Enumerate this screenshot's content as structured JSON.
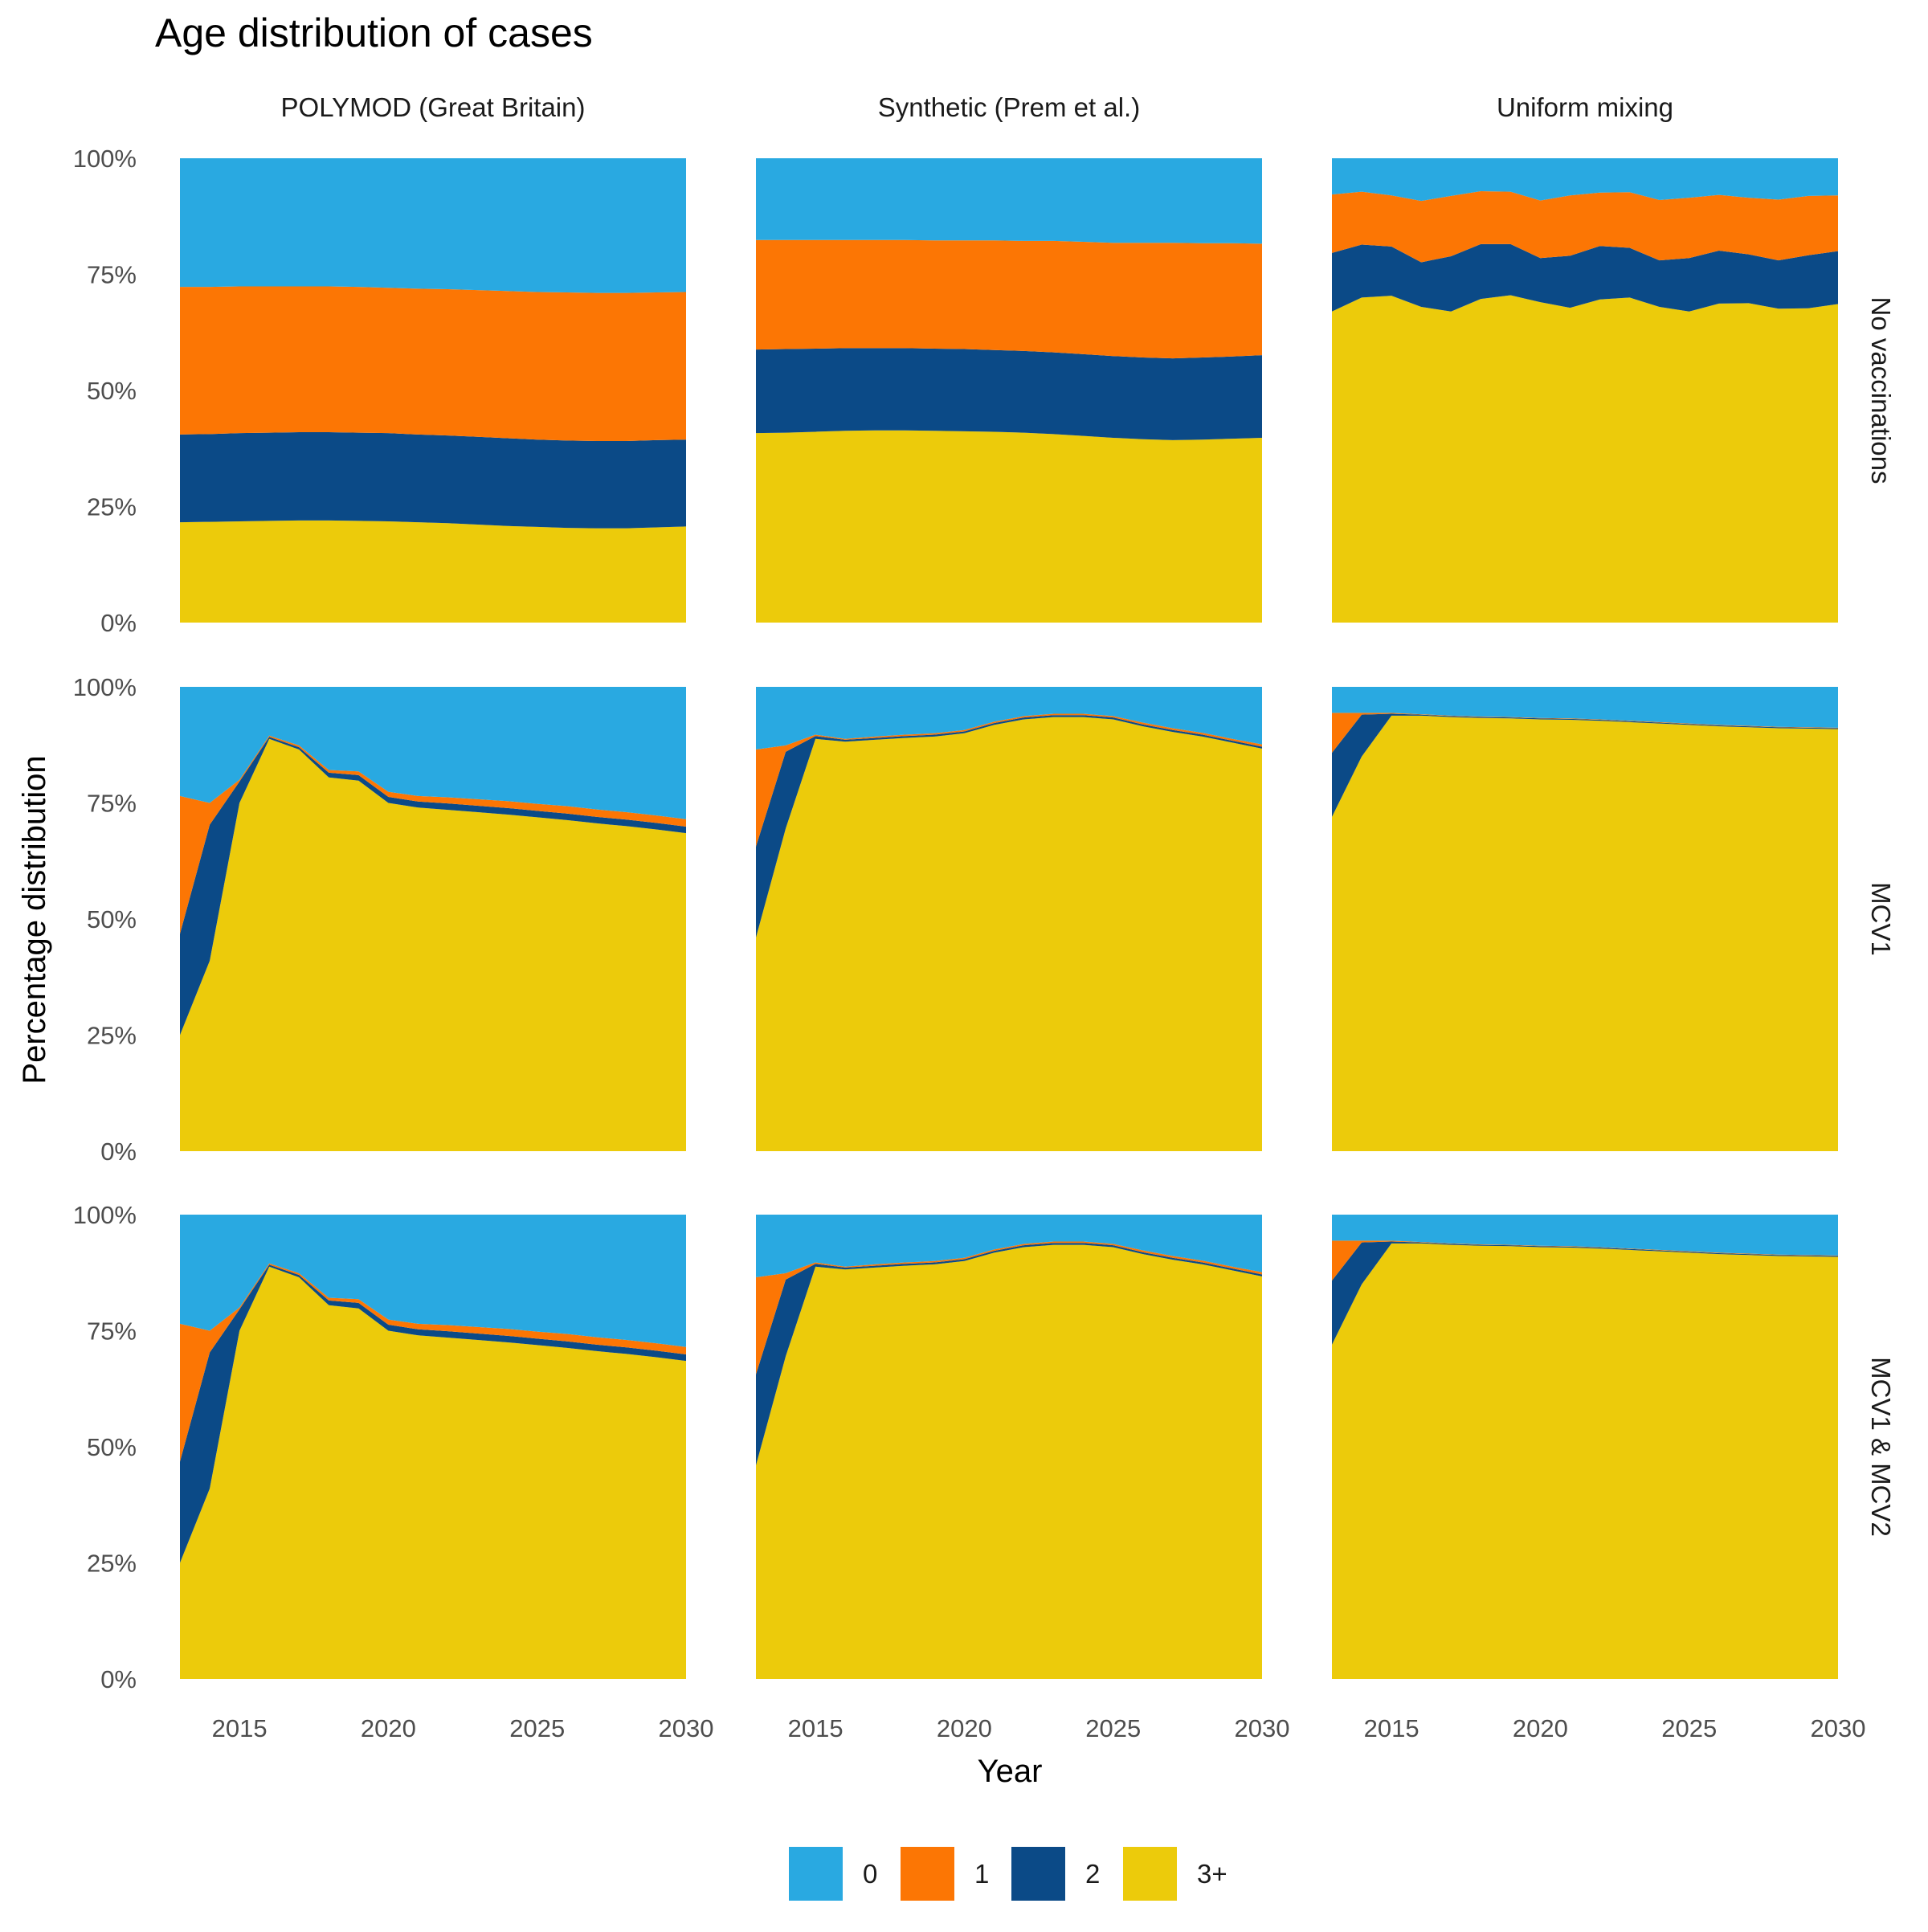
{
  "figure": {
    "title": "Age distribution of cases",
    "ylabel": "Percentage distribution",
    "xlabel": "Year"
  },
  "colors": {
    "0": "#29a9e1",
    "1": "#fc7604",
    "2": "#0b4a87",
    "3+": "#eccb0b"
  },
  "legend": {
    "placement": "bottom",
    "entries": [
      "0",
      "1",
      "2",
      "3+"
    ]
  },
  "chart_data": {
    "type": "area",
    "stacked": true,
    "facet_columns": [
      "POLYMOD (Great Britain)",
      "Synthetic (Prem et al.)",
      "Uniform mixing"
    ],
    "facet_rows": [
      "No vaccinations",
      "MCV1",
      "MCV1 & MCV2"
    ],
    "x": [
      2013,
      2014,
      2015,
      2016,
      2017,
      2018,
      2019,
      2020,
      2021,
      2022,
      2023,
      2024,
      2025,
      2026,
      2027,
      2028,
      2029,
      2030
    ],
    "xlim": [
      2013,
      2030
    ],
    "xticks": [
      "2015",
      "2020",
      "2025",
      "2030"
    ],
    "ylim": [
      0,
      100
    ],
    "yticks": [
      "0%",
      "25%",
      "50%",
      "75%",
      "100%"
    ],
    "series_order": [
      "3+",
      "2",
      "1",
      "0"
    ],
    "grid": false,
    "panels": [
      {
        "row": "No vaccinations",
        "column": "POLYMOD (Great Britain)",
        "series": [
          {
            "name": "3+",
            "values": [
              21.6,
              21.7,
              21.8,
              21.9,
              22.0,
              22.0,
              21.9,
              21.8,
              21.6,
              21.4,
              21.1,
              20.8,
              20.6,
              20.4,
              20.3,
              20.3,
              20.5,
              20.7
            ]
          },
          {
            "name": "2",
            "values": [
              18.9,
              18.9,
              19.0,
              19.0,
              19.0,
              19.0,
              19.0,
              19.0,
              18.9,
              18.9,
              18.9,
              18.9,
              18.8,
              18.8,
              18.8,
              18.8,
              18.8,
              18.7
            ]
          },
          {
            "name": "1",
            "values": [
              31.8,
              31.7,
              31.6,
              31.5,
              31.4,
              31.4,
              31.4,
              31.3,
              31.4,
              31.5,
              31.6,
              31.7,
              31.8,
              31.9,
              31.9,
              31.9,
              31.8,
              31.8
            ]
          },
          {
            "name": "0",
            "values": [
              27.7,
              27.7,
              27.6,
              27.6,
              27.6,
              27.6,
              27.7,
              27.9,
              28.1,
              28.2,
              28.4,
              28.6,
              28.8,
              28.9,
              29.0,
              29.0,
              28.9,
              28.8
            ]
          }
        ]
      },
      {
        "row": "No vaccinations",
        "column": "Synthetic (Prem et al.)",
        "series": [
          {
            "name": "3+",
            "values": [
              40.8,
              40.9,
              41.1,
              41.3,
              41.4,
              41.4,
              41.3,
              41.2,
              41.1,
              40.9,
              40.6,
              40.2,
              39.8,
              39.5,
              39.3,
              39.4,
              39.6,
              39.8
            ]
          },
          {
            "name": "2",
            "values": [
              18.0,
              18.0,
              17.9,
              17.8,
              17.7,
              17.7,
              17.7,
              17.7,
              17.6,
              17.6,
              17.6,
              17.6,
              17.6,
              17.6,
              17.6,
              17.7,
              17.7,
              17.8
            ]
          },
          {
            "name": "1",
            "values": [
              23.6,
              23.5,
              23.4,
              23.3,
              23.3,
              23.3,
              23.3,
              23.4,
              23.6,
              23.7,
              24.0,
              24.2,
              24.4,
              24.7,
              24.9,
              24.6,
              24.4,
              24.0
            ]
          },
          {
            "name": "0",
            "values": [
              17.6,
              17.6,
              17.6,
              17.6,
              17.6,
              17.6,
              17.7,
              17.7,
              17.7,
              17.8,
              17.8,
              18.0,
              18.2,
              18.2,
              18.2,
              18.3,
              18.3,
              18.4
            ]
          }
        ]
      },
      {
        "row": "No vaccinations",
        "column": "Uniform mixing",
        "series": [
          {
            "name": "3+",
            "values": [
              67.0,
              70.0,
              70.4,
              68.0,
              67.0,
              69.7,
              70.5,
              69.0,
              67.8,
              69.6,
              70.0,
              68.0,
              67.0,
              68.7,
              68.8,
              67.6,
              67.7,
              68.6
            ]
          },
          {
            "name": "2",
            "values": [
              12.6,
              11.4,
              10.6,
              9.6,
              11.9,
              11.8,
              11.0,
              9.5,
              11.2,
              11.5,
              10.7,
              10.0,
              11.5,
              11.4,
              10.5,
              10.4,
              11.4,
              11.4
            ]
          },
          {
            "name": "1",
            "values": [
              12.6,
              11.4,
              11.0,
              13.2,
              13.0,
              11.4,
              11.3,
              12.4,
              13.0,
              11.5,
              12.0,
              13.0,
              13.0,
              12.0,
              12.2,
              13.1,
              12.8,
              12.0
            ]
          },
          {
            "name": "0",
            "values": [
              7.8,
              7.2,
              8.0,
              9.2,
              8.1,
              7.1,
              7.2,
              9.1,
              8.0,
              7.4,
              7.3,
              9.0,
              8.5,
              7.9,
              8.5,
              8.9,
              8.1,
              8.0
            ]
          }
        ]
      },
      {
        "row": "MCV1",
        "column": "POLYMOD (Great Britain)",
        "series": [
          {
            "name": "3+",
            "values": [
              25.0,
              41.0,
              75.0,
              88.8,
              86.5,
              80.5,
              79.8,
              75.0,
              74.0,
              73.5,
              73.0,
              72.5,
              71.9,
              71.3,
              70.6,
              70.0,
              69.3,
              68.5
            ]
          },
          {
            "name": "2",
            "values": [
              21.8,
              29.3,
              4.6,
              0.4,
              0.5,
              1.0,
              1.2,
              1.3,
              1.3,
              1.4,
              1.4,
              1.4,
              1.4,
              1.4,
              1.4,
              1.4,
              1.4,
              1.4
            ]
          },
          {
            "name": "1",
            "values": [
              29.7,
              4.7,
              0.4,
              0.3,
              0.4,
              0.6,
              0.8,
              1.1,
              1.2,
              1.3,
              1.4,
              1.5,
              1.5,
              1.6,
              1.6,
              1.6,
              1.6,
              1.6
            ]
          },
          {
            "name": "0",
            "values": [
              23.5,
              25.0,
              20.0,
              10.5,
              12.6,
              17.9,
              18.2,
              22.6,
              23.5,
              23.8,
              24.2,
              24.6,
              25.2,
              25.7,
              26.4,
              27.0,
              27.7,
              28.5
            ]
          }
        ]
      },
      {
        "row": "MCV1",
        "column": "Synthetic (Prem et al.)",
        "series": [
          {
            "name": "3+",
            "values": [
              46.0,
              69.5,
              88.8,
              88.2,
              88.6,
              89.0,
              89.3,
              90.0,
              91.8,
              93.0,
              93.5,
              93.5,
              93.0,
              91.5,
              90.3,
              89.3,
              88.0,
              86.7
            ]
          },
          {
            "name": "2",
            "values": [
              19.6,
              16.5,
              0.6,
              0.4,
              0.4,
              0.4,
              0.4,
              0.4,
              0.4,
              0.4,
              0.4,
              0.4,
              0.4,
              0.4,
              0.4,
              0.4,
              0.4,
              0.4
            ]
          },
          {
            "name": "1",
            "values": [
              20.9,
              1.4,
              0.3,
              0.2,
              0.3,
              0.3,
              0.3,
              0.3,
              0.3,
              0.3,
              0.3,
              0.3,
              0.3,
              0.4,
              0.4,
              0.4,
              0.4,
              0.5
            ]
          },
          {
            "name": "0",
            "values": [
              13.5,
              12.6,
              10.3,
              11.2,
              10.7,
              10.3,
              10.0,
              9.3,
              7.5,
              6.3,
              5.8,
              5.8,
              6.3,
              7.7,
              8.9,
              9.9,
              11.2,
              12.4
            ]
          }
        ]
      },
      {
        "row": "MCV1",
        "column": "Uniform mixing",
        "series": [
          {
            "name": "3+",
            "values": [
              72.0,
              85.0,
              93.8,
              93.8,
              93.5,
              93.3,
              93.2,
              93.0,
              92.9,
              92.7,
              92.4,
              92.1,
              91.8,
              91.5,
              91.3,
              91.1,
              91.0,
              90.9
            ]
          },
          {
            "name": "2",
            "values": [
              13.8,
              9.0,
              0.4,
              0.2,
              0.2,
              0.2,
              0.2,
              0.2,
              0.2,
              0.2,
              0.2,
              0.2,
              0.2,
              0.2,
              0.2,
              0.2,
              0.2,
              0.2
            ]
          },
          {
            "name": "1",
            "values": [
              8.6,
              0.4,
              0.2,
              0.1,
              0.1,
              0.1,
              0.1,
              0.1,
              0.1,
              0.1,
              0.1,
              0.1,
              0.1,
              0.1,
              0.1,
              0.1,
              0.1,
              0.1
            ]
          },
          {
            "name": "0",
            "values": [
              5.6,
              5.6,
              5.6,
              5.9,
              6.2,
              6.4,
              6.5,
              6.7,
              6.8,
              7.0,
              7.3,
              7.6,
              7.9,
              8.2,
              8.4,
              8.6,
              8.7,
              8.8
            ]
          }
        ]
      },
      {
        "row": "MCV1 & MCV2",
        "column": "POLYMOD (Great Britain)",
        "series": [
          {
            "name": "3+",
            "values": [
              25.0,
              41.0,
              75.0,
              88.8,
              86.5,
              80.5,
              79.8,
              75.0,
              74.0,
              73.5,
              73.0,
              72.5,
              71.9,
              71.3,
              70.6,
              70.0,
              69.3,
              68.5
            ]
          },
          {
            "name": "2",
            "values": [
              21.8,
              29.3,
              4.6,
              0.4,
              0.5,
              1.0,
              1.2,
              1.3,
              1.3,
              1.4,
              1.4,
              1.4,
              1.4,
              1.4,
              1.4,
              1.4,
              1.4,
              1.4
            ]
          },
          {
            "name": "1",
            "values": [
              29.7,
              4.7,
              0.4,
              0.3,
              0.4,
              0.6,
              0.8,
              1.1,
              1.2,
              1.3,
              1.4,
              1.5,
              1.5,
              1.6,
              1.6,
              1.6,
              1.6,
              1.6
            ]
          },
          {
            "name": "0",
            "values": [
              23.5,
              25.0,
              20.0,
              10.5,
              12.6,
              17.9,
              18.2,
              22.6,
              23.5,
              23.8,
              24.2,
              24.6,
              25.2,
              25.7,
              26.4,
              27.0,
              27.7,
              28.5
            ]
          }
        ]
      },
      {
        "row": "MCV1 & MCV2",
        "column": "Synthetic (Prem et al.)",
        "series": [
          {
            "name": "3+",
            "values": [
              46.0,
              69.5,
              88.8,
              88.2,
              88.6,
              89.0,
              89.3,
              90.0,
              91.8,
              93.0,
              93.5,
              93.5,
              93.0,
              91.5,
              90.3,
              89.3,
              88.0,
              86.7
            ]
          },
          {
            "name": "2",
            "values": [
              19.6,
              16.5,
              0.6,
              0.4,
              0.4,
              0.4,
              0.4,
              0.4,
              0.4,
              0.4,
              0.4,
              0.4,
              0.4,
              0.4,
              0.4,
              0.4,
              0.4,
              0.4
            ]
          },
          {
            "name": "1",
            "values": [
              20.9,
              1.4,
              0.3,
              0.2,
              0.3,
              0.3,
              0.3,
              0.3,
              0.3,
              0.3,
              0.3,
              0.3,
              0.3,
              0.4,
              0.4,
              0.4,
              0.4,
              0.5
            ]
          },
          {
            "name": "0",
            "values": [
              13.5,
              12.6,
              10.3,
              11.2,
              10.7,
              10.3,
              10.0,
              9.3,
              7.5,
              6.3,
              5.8,
              5.8,
              6.3,
              7.7,
              8.9,
              9.9,
              11.2,
              12.4
            ]
          }
        ]
      },
      {
        "row": "MCV1 & MCV2",
        "column": "Uniform mixing",
        "series": [
          {
            "name": "3+",
            "values": [
              72.0,
              85.0,
              93.8,
              93.8,
              93.5,
              93.3,
              93.2,
              93.0,
              92.9,
              92.7,
              92.4,
              92.1,
              91.8,
              91.5,
              91.3,
              91.1,
              91.0,
              90.9
            ]
          },
          {
            "name": "2",
            "values": [
              13.8,
              9.0,
              0.4,
              0.2,
              0.2,
              0.2,
              0.2,
              0.2,
              0.2,
              0.2,
              0.2,
              0.2,
              0.2,
              0.2,
              0.2,
              0.2,
              0.2,
              0.2
            ]
          },
          {
            "name": "1",
            "values": [
              8.6,
              0.4,
              0.2,
              0.1,
              0.1,
              0.1,
              0.1,
              0.1,
              0.1,
              0.1,
              0.1,
              0.1,
              0.1,
              0.1,
              0.1,
              0.1,
              0.1,
              0.1
            ]
          },
          {
            "name": "0",
            "values": [
              5.6,
              5.6,
              5.6,
              5.9,
              6.2,
              6.4,
              6.5,
              6.7,
              6.8,
              7.0,
              7.3,
              7.6,
              7.9,
              8.2,
              8.4,
              8.6,
              8.7,
              8.8
            ]
          }
        ]
      }
    ]
  }
}
